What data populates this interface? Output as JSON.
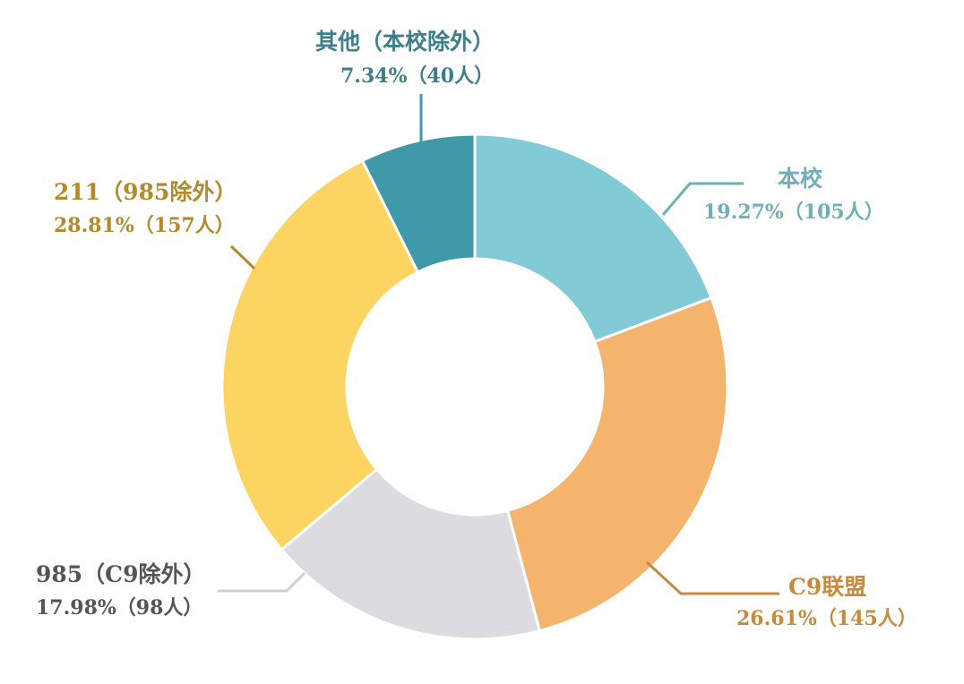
{
  "chart_data": {
    "type": "pie",
    "donut": true,
    "start_angle_deg": 0,
    "direction": "clockwise",
    "slices": [
      {
        "name": "本校",
        "percent": 19.27,
        "count_label": "19.27%（105人）",
        "count": 105,
        "color": "#82CAD6",
        "label_color": "#6DAFBB"
      },
      {
        "name": "C9联盟",
        "percent": 26.61,
        "count_label": "26.61%（145人）",
        "count": 145,
        "color": "#F5B46E",
        "label_color": "#C9893A"
      },
      {
        "name": "985（C9除外）",
        "percent": 17.98,
        "count_label": "17.98%（98人）",
        "count": 98,
        "color": "#DCDCE0",
        "label_color": "#555555"
      },
      {
        "name": "211（985除外）",
        "percent": 28.81,
        "count_label": "28.81%（157人）",
        "count": 157,
        "color": "#FBD462",
        "label_color": "#B38A2A"
      },
      {
        "name": "其他（本校除外）",
        "percent": 7.34,
        "count_label": "7.34%（40人）",
        "count": 40,
        "color": "#3F99A8",
        "label_color": "#3C7F8B"
      }
    ]
  }
}
